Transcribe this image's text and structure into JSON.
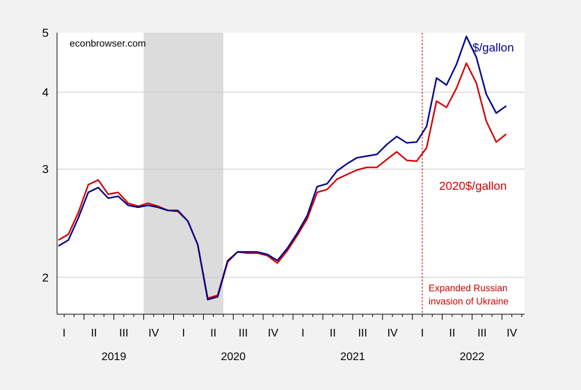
{
  "chart_data": {
    "type": "line",
    "title": "",
    "xlabel": "",
    "ylabel": "",
    "yscale": "log",
    "ylim": [
      1.8,
      5
    ],
    "yticks": [
      2,
      3,
      4,
      5
    ],
    "grid": "horizontal at y ticks",
    "watermark": "econbrowser.com",
    "recession_shading": {
      "start": "2019-10",
      "end": "2020-06"
    },
    "event_line": {
      "date": "2022-02",
      "label_line1": "Expanded Russian",
      "label_line2": "invasion of Ukraine",
      "color": "#cc0000"
    },
    "quarter_labels": [
      "I",
      "II",
      "III",
      "IV",
      "I",
      "II",
      "III",
      "IV",
      "I",
      "II",
      "III",
      "IV",
      "I",
      "II",
      "III",
      "IV"
    ],
    "year_labels": [
      "2019",
      "2020",
      "2021",
      "2022"
    ],
    "x": [
      "2019-01",
      "2019-02",
      "2019-03",
      "2019-04",
      "2019-05",
      "2019-06",
      "2019-07",
      "2019-08",
      "2019-09",
      "2019-10",
      "2019-11",
      "2019-12",
      "2020-01",
      "2020-02",
      "2020-03",
      "2020-04",
      "2020-05",
      "2020-06",
      "2020-07",
      "2020-08",
      "2020-09",
      "2020-10",
      "2020-11",
      "2020-12",
      "2021-01",
      "2021-02",
      "2021-03",
      "2021-04",
      "2021-05",
      "2021-06",
      "2021-07",
      "2021-08",
      "2021-09",
      "2021-10",
      "2021-11",
      "2021-12",
      "2022-01",
      "2022-02",
      "2022-03",
      "2022-04",
      "2022-05",
      "2022-06",
      "2022-07",
      "2022-08",
      "2022-09",
      "2022-10"
    ],
    "series": [
      {
        "name": "$/gallon",
        "color": "#00008b",
        "values": [
          2.25,
          2.3,
          2.5,
          2.75,
          2.8,
          2.69,
          2.71,
          2.62,
          2.6,
          2.62,
          2.6,
          2.57,
          2.57,
          2.47,
          2.26,
          1.84,
          1.86,
          2.12,
          2.2,
          2.2,
          2.2,
          2.18,
          2.13,
          2.23,
          2.36,
          2.52,
          2.81,
          2.84,
          2.98,
          3.06,
          3.13,
          3.15,
          3.17,
          3.29,
          3.39,
          3.31,
          3.32,
          3.52,
          4.22,
          4.11,
          4.44,
          4.93,
          4.56,
          3.97,
          3.7,
          3.8
        ]
      },
      {
        "name": "2020$/gallon",
        "color": "#d40000",
        "values": [
          2.3,
          2.35,
          2.55,
          2.83,
          2.88,
          2.73,
          2.75,
          2.64,
          2.61,
          2.64,
          2.61,
          2.57,
          2.56,
          2.47,
          2.26,
          1.85,
          1.87,
          2.13,
          2.2,
          2.19,
          2.19,
          2.17,
          2.11,
          2.21,
          2.34,
          2.49,
          2.75,
          2.78,
          2.89,
          2.94,
          2.99,
          3.02,
          3.02,
          3.11,
          3.2,
          3.1,
          3.09,
          3.25,
          3.87,
          3.78,
          4.06,
          4.46,
          4.14,
          3.59,
          3.32,
          3.42
        ]
      }
    ]
  }
}
